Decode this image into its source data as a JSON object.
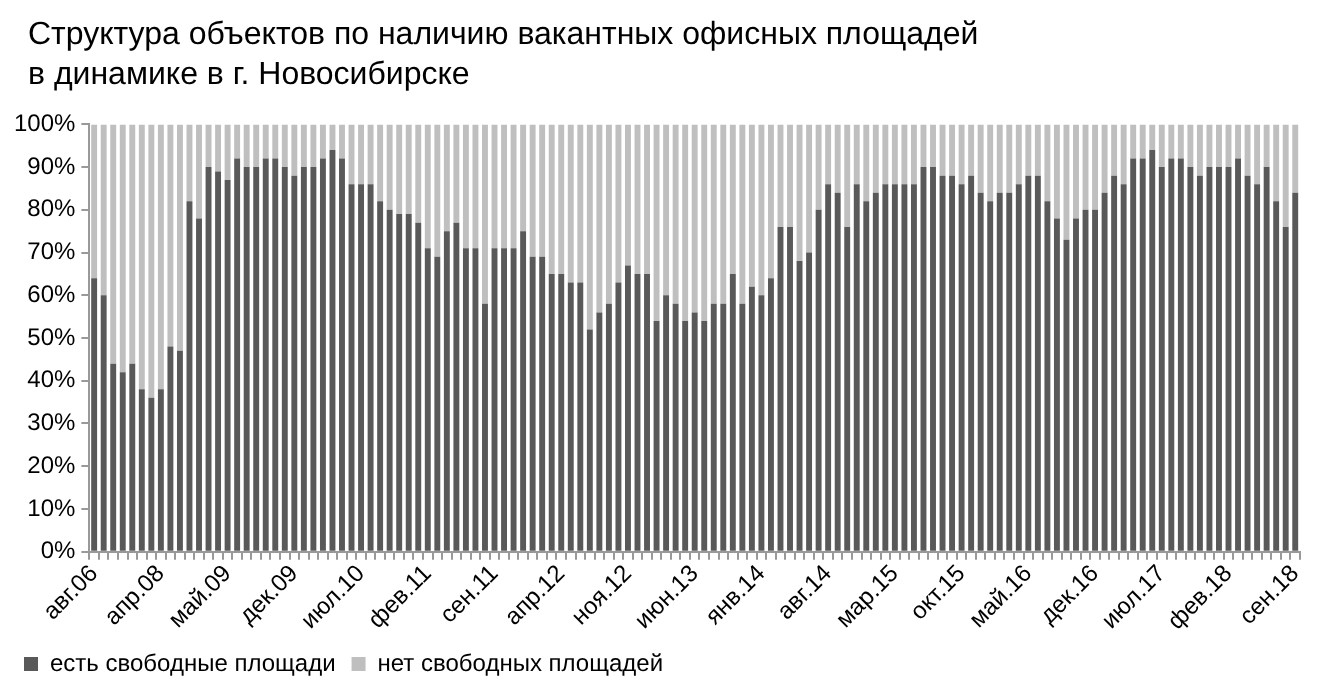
{
  "chart_data": {
    "type": "bar",
    "title": "Структура объектов  по наличию вакантных  офисных площадей в динамике в г. Новосибирске",
    "categories": [
      "авг.06",
      null,
      null,
      null,
      null,
      null,
      null,
      "апр.08",
      null,
      null,
      null,
      null,
      null,
      null,
      "май.09",
      null,
      null,
      null,
      null,
      null,
      null,
      "дек.09",
      null,
      null,
      null,
      null,
      null,
      null,
      "июл.10",
      null,
      null,
      null,
      null,
      null,
      null,
      "фев.11",
      null,
      null,
      null,
      null,
      null,
      null,
      "сен.11",
      null,
      null,
      null,
      null,
      null,
      null,
      "апр.12",
      null,
      null,
      null,
      null,
      null,
      null,
      "ноя.12",
      null,
      null,
      null,
      null,
      null,
      null,
      "июн.13",
      null,
      null,
      null,
      null,
      null,
      null,
      "янв.14",
      null,
      null,
      null,
      null,
      null,
      null,
      "авг.14",
      null,
      null,
      null,
      null,
      null,
      null,
      "мар.15",
      null,
      null,
      null,
      null,
      null,
      null,
      "окт.15",
      null,
      null,
      null,
      null,
      null,
      null,
      "май.16",
      null,
      null,
      null,
      null,
      null,
      null,
      "дек.16",
      null,
      null,
      null,
      null,
      null,
      null,
      "июл.17",
      null,
      null,
      null,
      null,
      null,
      null,
      "фев.18",
      null,
      null,
      null,
      null,
      null,
      null,
      "сен.18"
    ],
    "series": [
      {
        "name": "есть свободные площади",
        "color": "#595959",
        "values": [
          64,
          60,
          44,
          42,
          44,
          38,
          36,
          38,
          48,
          47,
          82,
          78,
          90,
          89,
          87,
          92,
          90,
          90,
          92,
          92,
          90,
          88,
          90,
          90,
          92,
          94,
          92,
          86,
          86,
          86,
          82,
          80,
          79,
          79,
          77,
          71,
          69,
          75,
          77,
          71,
          71,
          58,
          71,
          71,
          71,
          75,
          69,
          69,
          65,
          65,
          63,
          63,
          52,
          56,
          58,
          63,
          67,
          65,
          65,
          54,
          60,
          58,
          54,
          56,
          54,
          58,
          58,
          65,
          58,
          62,
          60,
          64,
          76,
          76,
          68,
          70,
          80,
          86,
          84,
          76,
          86,
          82,
          84,
          86,
          86,
          86,
          86,
          90,
          90,
          88,
          88,
          86,
          88,
          84,
          82,
          84,
          84,
          86,
          88,
          88,
          82,
          78,
          73,
          78,
          80,
          80,
          84,
          88,
          86,
          92,
          92,
          94,
          90,
          92,
          92,
          90,
          88,
          90,
          90,
          90,
          92,
          88,
          86,
          90,
          82,
          76,
          84
        ]
      },
      {
        "name": "нет свободных площадей",
        "color": "#bfbfbf",
        "values": [
          36,
          40,
          56,
          58,
          56,
          62,
          64,
          62,
          52,
          53,
          18,
          22,
          10,
          11,
          13,
          8,
          10,
          10,
          8,
          8,
          10,
          12,
          10,
          10,
          8,
          6,
          8,
          14,
          14,
          14,
          18,
          20,
          21,
          21,
          23,
          29,
          31,
          25,
          23,
          29,
          29,
          42,
          29,
          29,
          29,
          25,
          31,
          31,
          35,
          35,
          37,
          37,
          48,
          44,
          42,
          37,
          33,
          35,
          35,
          46,
          40,
          42,
          46,
          44,
          46,
          42,
          42,
          35,
          42,
          38,
          40,
          36,
          24,
          24,
          32,
          30,
          20,
          14,
          16,
          24,
          14,
          18,
          16,
          14,
          14,
          14,
          14,
          10,
          10,
          12,
          12,
          14,
          12,
          16,
          18,
          16,
          16,
          14,
          12,
          12,
          18,
          22,
          27,
          22,
          20,
          20,
          16,
          12,
          14,
          8,
          8,
          6,
          10,
          8,
          8,
          10,
          12,
          10,
          10,
          10,
          8,
          12,
          14,
          10,
          18,
          24,
          16
        ]
      }
    ],
    "stacked": true,
    "ylim": [
      0,
      100
    ],
    "yticks": [
      {
        "value": 0,
        "label": "0%"
      },
      {
        "value": 10,
        "label": "10%"
      },
      {
        "value": 20,
        "label": "20%"
      },
      {
        "value": 30,
        "label": "30%"
      },
      {
        "value": 40,
        "label": "40%"
      },
      {
        "value": 50,
        "label": "50%"
      },
      {
        "value": 60,
        "label": "60%"
      },
      {
        "value": 70,
        "label": "70%"
      },
      {
        "value": 80,
        "label": "80%"
      },
      {
        "value": 90,
        "label": "90%"
      },
      {
        "value": 100,
        "label": "100%"
      }
    ],
    "grid": false,
    "legend": "bottom left"
  }
}
